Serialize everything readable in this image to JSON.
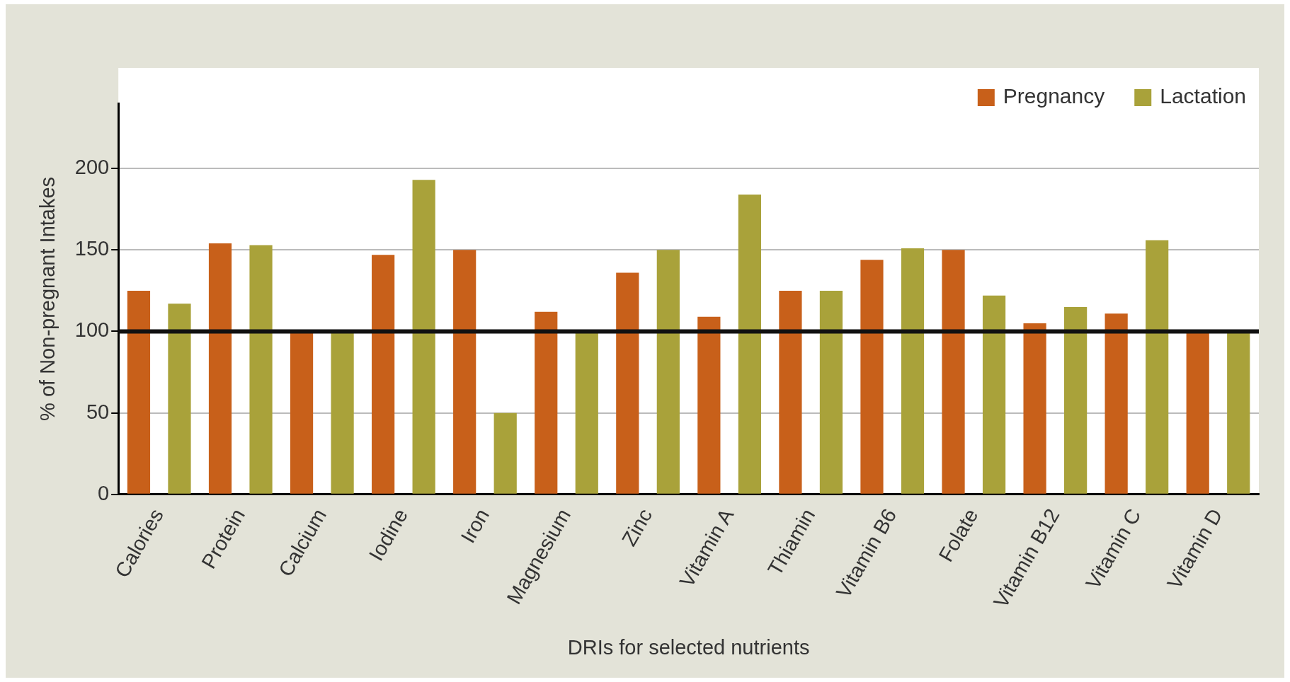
{
  "chart_data": {
    "type": "bar",
    "xlabel": "DRIs for selected nutrients",
    "ylabel": "% of Non-pregnant Intakes",
    "categories": [
      "Calories",
      "Protein",
      "Calcium",
      "Iodine",
      "Iron",
      "Magnesium",
      "Zinc",
      "Vitamin A",
      "Thiamin",
      "Vitamin B6",
      "Folate",
      "Vitamin B12",
      "Vitamin C",
      "Vitamin D"
    ],
    "series": [
      {
        "name": "Pregnancy",
        "color": "#c8601a",
        "values": [
          125,
          154,
          100,
          147,
          150,
          112,
          136,
          109,
          125,
          144,
          150,
          105,
          111,
          100
        ]
      },
      {
        "name": "Lactation",
        "color": "#a9a23a",
        "values": [
          117,
          153,
          100,
          193,
          50,
          100,
          150,
          184,
          125,
          151,
          122,
          115,
          156,
          100
        ]
      }
    ],
    "ylim": [
      0,
      240
    ],
    "yticks": [
      0,
      50,
      100,
      150,
      200
    ],
    "grid": "y",
    "legend": "top right",
    "ref_lines": [
      {
        "axis": "y",
        "value": 100,
        "color": "#111111"
      }
    ]
  }
}
